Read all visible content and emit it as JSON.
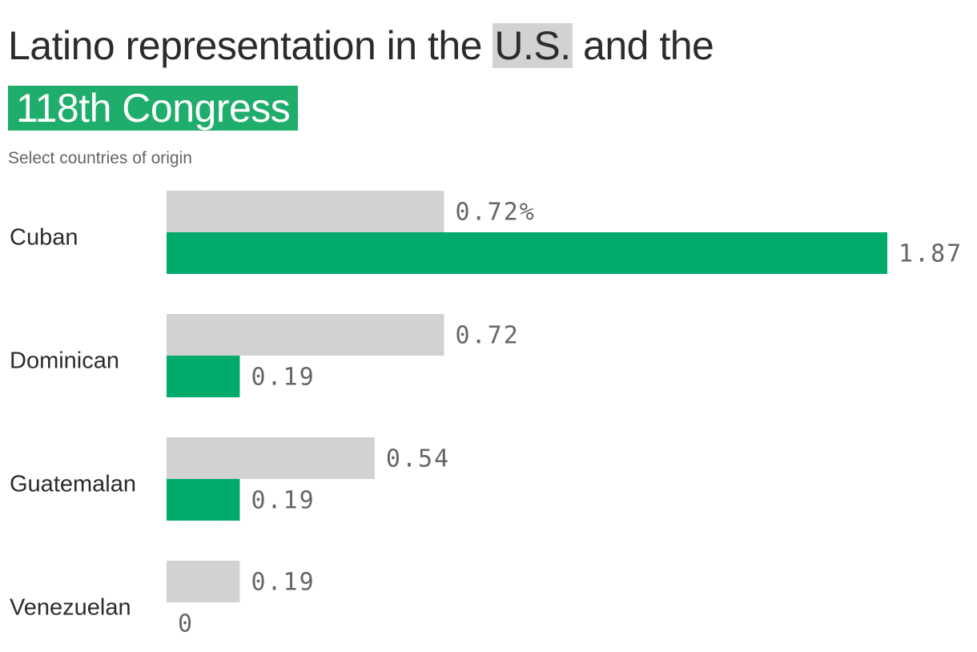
{
  "title": {
    "part1": "Latino representation in the ",
    "us": "U.S.",
    "part2": " and the",
    "congress": "118th Congress"
  },
  "subtitle": "Select countries of origin",
  "colors": {
    "us": "#d1d2d1",
    "congress": "#00ab6b",
    "text": "#2b2b2b",
    "value_text": "#666666"
  },
  "chart_data": {
    "type": "bar",
    "orientation": "horizontal",
    "title": "Latino representation in the U.S. and the 118th Congress",
    "subtitle": "Select countries of origin",
    "categories": [
      "Cuban",
      "Dominican",
      "Guatemalan",
      "Venezuelan"
    ],
    "series": [
      {
        "name": "U.S.",
        "values": [
          0.72,
          0.72,
          0.54,
          0.19
        ],
        "color": "#d1d2d1",
        "labels": [
          "0.72%",
          "0.72",
          "0.54",
          "0.19"
        ]
      },
      {
        "name": "118th Congress",
        "values": [
          1.87,
          0.19,
          0.19,
          0
        ],
        "color": "#00ab6b",
        "labels": [
          "1.87",
          "0.19",
          "0.19",
          "0"
        ]
      }
    ],
    "xlim": [
      0,
      1.87
    ],
    "grid": false,
    "legend": "title"
  }
}
